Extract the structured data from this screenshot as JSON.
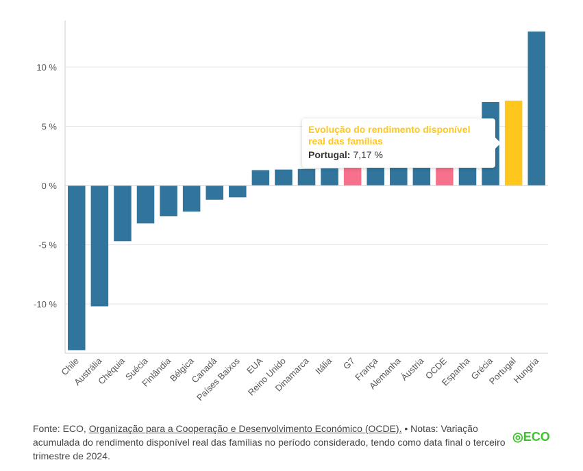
{
  "chart_data": {
    "type": "bar",
    "categories": [
      "Chile",
      "Austrália",
      "Chéquia",
      "Suécia",
      "Finlândia",
      "Bélgica",
      "Canadá",
      "Países Baixos",
      "EUA",
      "Reino Unido",
      "Dinamarca",
      "Itália",
      "G7",
      "França",
      "Alemanha",
      "Áustria",
      "OCDE",
      "Espanha",
      "Grécia",
      "Portugal",
      "Hungria"
    ],
    "values": [
      -13.9,
      -10.2,
      -4.7,
      -3.2,
      -2.6,
      -2.2,
      -1.2,
      -1.0,
      1.3,
      1.35,
      1.4,
      1.45,
      1.5,
      1.5,
      1.5,
      1.5,
      1.5,
      1.5,
      7.05,
      7.17,
      13.0
    ],
    "colors": [
      "#31759c",
      "#31759c",
      "#31759c",
      "#31759c",
      "#31759c",
      "#31759c",
      "#31759c",
      "#31759c",
      "#31759c",
      "#31759c",
      "#31759c",
      "#31759c",
      "#f7708c",
      "#31759c",
      "#31759c",
      "#31759c",
      "#f7708c",
      "#31759c",
      "#31759c",
      "#ffc61e",
      "#31759c"
    ],
    "yticks": [
      10,
      5,
      0,
      -5,
      -10
    ],
    "ytick_labels": [
      "10 %",
      "5 %",
      "0 %",
      "-5 %",
      "-10 %"
    ],
    "ylim": [
      -14,
      14.5
    ],
    "grid": true
  },
  "tooltip": {
    "title": "Evolução do rendimento disponível real das famílias",
    "label": "Portugal:",
    "value": "7,17 %"
  },
  "footer": {
    "prefix": "Fonte: ECO, ",
    "link": "Organização para a Cooperação e Desenvolvimento Económico (OCDE).",
    "notes": " • Notas: Variação acumulada do rendimento disponível real das famílias no período considerado, tendo como data final o terceiro trimestre de 2024."
  },
  "logo": "ECO"
}
